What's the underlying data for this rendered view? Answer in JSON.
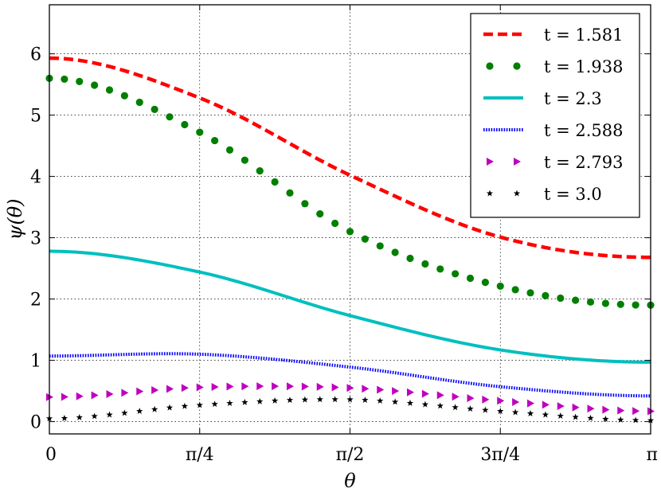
{
  "chart_data": {
    "type": "line",
    "xlabel": "θ",
    "ylabel": "ψ(θ)",
    "xlim": [
      0,
      3.14159
    ],
    "ylim": [
      -0.2,
      6.8
    ],
    "x_ticks": [
      {
        "value": 0,
        "label": "0"
      },
      {
        "value": 0.785398,
        "label": "π/4"
      },
      {
        "value": 1.570796,
        "label": "π/2"
      },
      {
        "value": 2.356194,
        "label": "3π/4"
      },
      {
        "value": 3.141593,
        "label": "π"
      }
    ],
    "y_ticks": [
      0,
      1,
      2,
      3,
      4,
      5,
      6
    ],
    "grid": true,
    "legend_position": "top-right",
    "series": [
      {
        "name": "t = 1.581",
        "legend_label": "t = 1.581",
        "style": "dashed",
        "color": "#ff0000",
        "ypoints": [
          5.93,
          5.28,
          4.02,
          3.01,
          2.68
        ]
      },
      {
        "name": "t = 1.938",
        "legend_label": "t = 1.938",
        "style": "dots",
        "color": "#007f00",
        "ypoints": [
          5.6,
          4.72,
          3.1,
          2.21,
          1.9
        ]
      },
      {
        "name": "t = 2.3",
        "legend_label": "t = 2.3",
        "style": "solid",
        "color": "#00bfbf",
        "ypoints": [
          2.78,
          2.44,
          1.73,
          1.17,
          0.97
        ]
      },
      {
        "name": "t = 2.588",
        "legend_label": "t = 2.588",
        "style": "dotted-line",
        "color": "#0000ff",
        "ypoints": [
          1.07,
          1.1,
          0.89,
          0.57,
          0.42
        ]
      },
      {
        "name": "t = 2.793",
        "legend_label": "t = 2.793",
        "style": "triangles",
        "color": "#bf00bf",
        "ypoints": [
          0.4,
          0.56,
          0.55,
          0.34,
          0.17
        ]
      },
      {
        "name": "t = 3.0",
        "legend_label": "t = 3.0",
        "style": "stars",
        "color": "#000000",
        "ypoints": [
          0.05,
          0.27,
          0.36,
          0.17,
          0.02
        ]
      }
    ]
  }
}
